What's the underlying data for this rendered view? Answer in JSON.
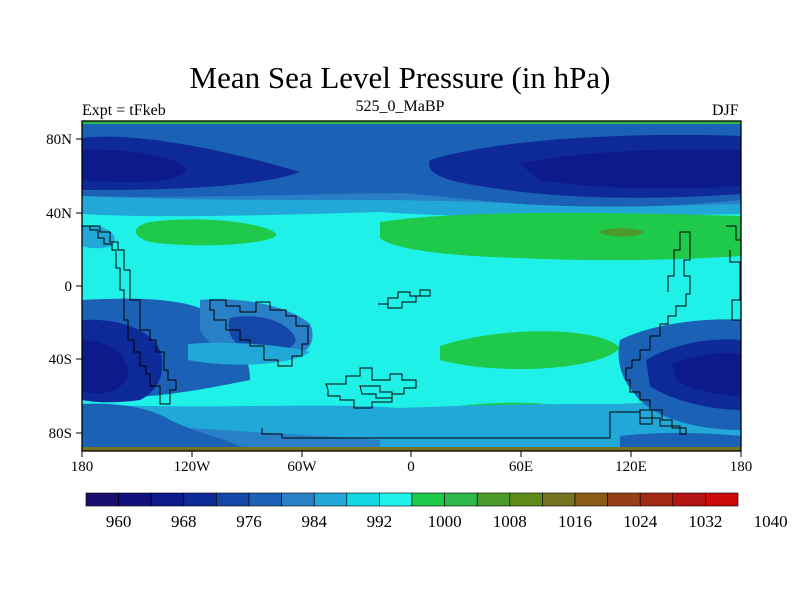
{
  "title": "Mean Sea Level Pressure (in hPa)",
  "left_string": "Expt = tFkeb",
  "center_string": "525_0_MaBP",
  "right_string": "DJF",
  "x_ticks": [
    "180",
    "120W",
    "60W",
    "0",
    "60E",
    "120E",
    "180"
  ],
  "y_ticks": [
    "80N",
    "40N",
    "0",
    "40S",
    "80S"
  ],
  "colorbar": {
    "colors": [
      "#1a0f6e",
      "#12107e",
      "#0d1a8c",
      "#0e2a98",
      "#1448a8",
      "#1b62b6",
      "#2a80c6",
      "#22a8d8",
      "#12d6e2",
      "#1ff0e8",
      "#1fc94a",
      "#2eb84a",
      "#4a9a2a",
      "#5e8a1a",
      "#767320",
      "#8a5a18",
      "#963f16",
      "#a22a14",
      "#b41414",
      "#cc0a0a"
    ],
    "labels": [
      "960",
      "968",
      "976",
      "984",
      "992",
      "1000",
      "1008",
      "1016",
      "1024",
      "1032",
      "1040"
    ]
  },
  "chart_data": {
    "type": "heatmap",
    "title": "Mean Sea Level Pressure (in hPa)",
    "subtitle": "525_0_MaBP",
    "left_string": "Expt = tFkeb",
    "right_string": "DJF",
    "xlim": [
      -180,
      180
    ],
    "ylim": [
      -90,
      90
    ],
    "x_ticks": [
      -180,
      -120,
      -60,
      0,
      60,
      120,
      180
    ],
    "y_ticks": [
      80,
      40,
      0,
      -40,
      -80
    ],
    "contour_levels": [
      960,
      964,
      968,
      972,
      976,
      980,
      984,
      988,
      992,
      996,
      1000,
      1004,
      1008,
      1012,
      1016,
      1020,
      1024,
      1028,
      1032,
      1036,
      1040
    ],
    "colorbar_labels": [
      960,
      968,
      976,
      984,
      992,
      1000,
      1008,
      1016,
      1024,
      1032,
      1040
    ]
  }
}
